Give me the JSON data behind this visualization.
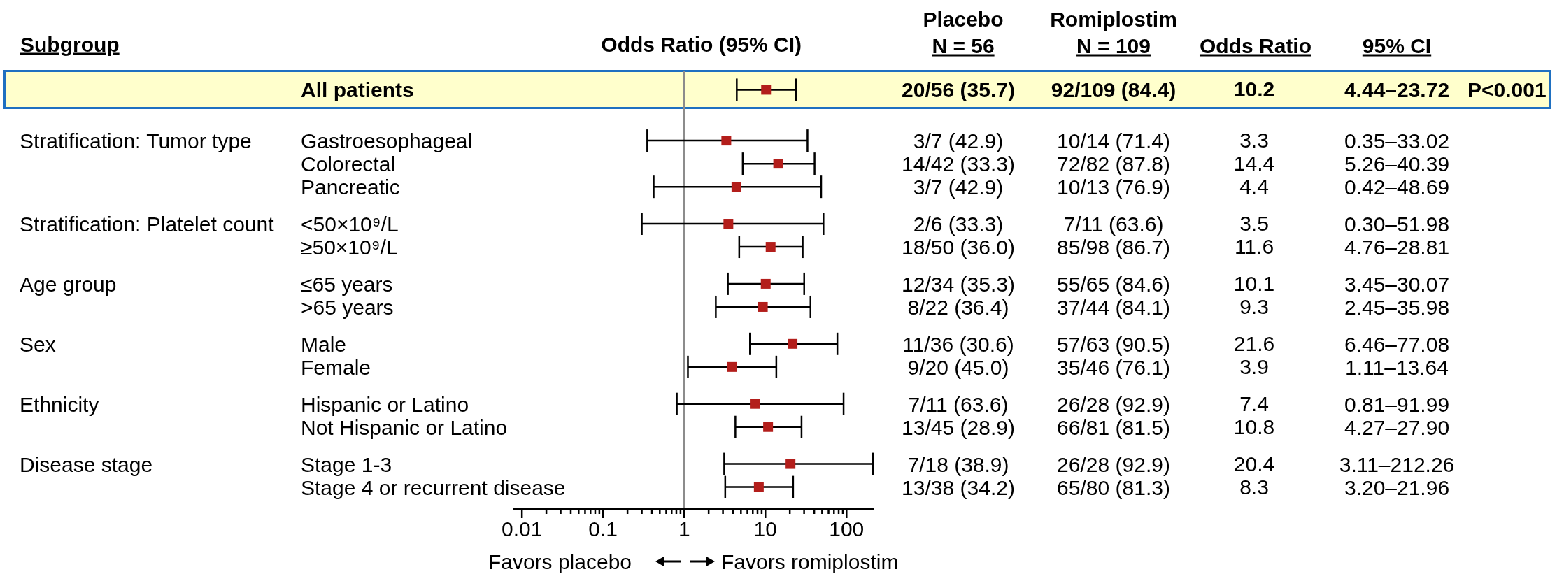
{
  "chart_data": {
    "type": "scatter",
    "orientation": "horizontal",
    "categories": [
      "All patients",
      "Gastroesophageal",
      "Colorectal",
      "Pancreatic",
      "<50×10⁹/L",
      "≥50×10⁹/L",
      "≤65 years",
      ">65 years",
      "Male",
      "Female",
      "Hispanic or Latino",
      "Not Hispanic or Latino",
      "Stage 1-3",
      "Stage 4 or recurrent disease"
    ],
    "y2_categories": [
      null,
      "Stratification: Tumor type",
      null,
      null,
      "Stratification: Platelet count",
      null,
      "Age group",
      null,
      "Sex",
      null,
      "Ethnicity",
      null,
      "Disease stage",
      null
    ],
    "values": [
      10.2,
      3.3,
      14.4,
      4.4,
      3.5,
      11.6,
      10.1,
      9.3,
      21.6,
      3.9,
      7.4,
      10.8,
      20.4,
      8.3
    ],
    "errors": [
      [
        4.44,
        23.72
      ],
      [
        0.35,
        33.02
      ],
      [
        5.26,
        40.39
      ],
      [
        0.42,
        48.69
      ],
      [
        0.3,
        51.98
      ],
      [
        4.76,
        28.81
      ],
      [
        3.45,
        30.07
      ],
      [
        2.45,
        35.98
      ],
      [
        6.46,
        77.08
      ],
      [
        1.11,
        13.64
      ],
      [
        0.81,
        91.99
      ],
      [
        4.27,
        27.9
      ],
      [
        3.11,
        212.26
      ],
      [
        3.2,
        21.96
      ]
    ],
    "color": "#b31e1b",
    "marker": "square",
    "data_labels": true,
    "log": "x",
    "xlim": [
      0.0077,
      220
    ],
    "xticks": [
      0.01,
      {
        "value": 0.02,
        "label": null
      },
      {
        "value": 0.03,
        "label": null
      },
      {
        "value": 0.04,
        "label": null
      },
      {
        "value": 0.05,
        "label": null
      },
      {
        "value": 0.06,
        "label": null
      },
      {
        "value": 0.07,
        "label": null
      },
      {
        "value": 0.08,
        "label": null
      },
      {
        "value": 0.09,
        "label": null
      },
      0.1,
      {
        "value": 0.2,
        "label": null
      },
      {
        "value": 0.3,
        "label": null
      },
      {
        "value": 0.4,
        "label": null
      },
      {
        "value": 0.5,
        "label": null
      },
      {
        "value": 0.6,
        "label": null
      },
      {
        "value": 0.7,
        "label": null
      },
      {
        "value": 0.8,
        "label": null
      },
      {
        "value": 0.9,
        "label": null
      },
      1,
      {
        "value": 2,
        "label": null
      },
      {
        "value": 3,
        "label": null
      },
      {
        "value": 4,
        "label": null
      },
      {
        "value": 5,
        "label": null
      },
      {
        "value": 6,
        "label": null
      },
      {
        "value": 7,
        "label": null
      },
      {
        "value": 8,
        "label": null
      },
      {
        "value": 9,
        "label": null
      },
      10,
      {
        "value": 20,
        "label": null
      },
      {
        "value": 30,
        "label": null
      },
      {
        "value": 40,
        "label": null
      },
      {
        "value": 50,
        "label": null
      },
      {
        "value": 60,
        "label": null
      },
      {
        "value": 70,
        "label": null
      },
      {
        "value": 80,
        "label": null
      },
      {
        "value": 90,
        "label": null
      },
      100
    ],
    "ref_lines": [
      {
        "axis": "x",
        "value": 1,
        "label": null,
        "color": "#8c8c8c"
      }
    ],
    "annotations": [
      "Subgroup",
      "Odds Ratio (95% CI)",
      "Placebo",
      "N = 56",
      "Romiplostim",
      "N = 109",
      "Odds Ratio",
      "95% CI",
      "Favors placebo",
      "Favors romiplostim",
      "20/56 (35.7)",
      "92/109 (84.4)",
      "4.44–23.72",
      "P<0.001",
      "3/7 (42.9)",
      "10/14 (71.4)",
      "0.35–33.02",
      "14/42 (33.3)",
      "72/82 (87.8)",
      "5.26–40.39",
      "3/7 (42.9)",
      "10/13 (76.9)",
      "0.42–48.69",
      "2/6 (33.3)",
      "7/11 (63.6)",
      "0.30–51.98",
      "18/50 (36.0)",
      "85/98 (86.7)",
      "4.76–28.81",
      "12/34 (35.3)",
      "55/65 (84.6)",
      "3.45–30.07",
      "8/22 (36.4)",
      "37/44 (84.1)",
      "2.45–35.98",
      "11/36 (30.6)",
      "57/63 (90.5)",
      "6.46–77.08",
      "9/20 (45.0)",
      "35/46 (76.1)",
      "1.11–13.64",
      "7/11 (63.6)",
      "26/28 (92.9)",
      "0.81–91.99",
      "13/45 (28.9)",
      "66/81 (81.5)",
      "4.27–27.90",
      "7/18 (38.9)",
      "26/28 (92.9)",
      "3.11–212.26",
      "13/38 (34.2)",
      "65/80 (81.3)",
      "3.20–21.96"
    ]
  }
}
